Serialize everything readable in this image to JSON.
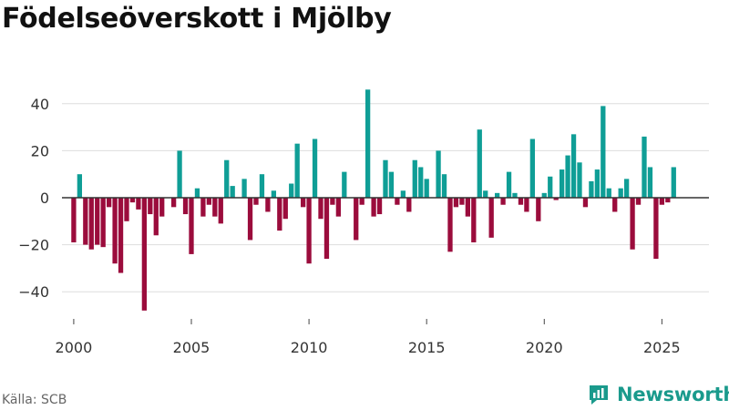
{
  "page": {
    "title": "Födelseöverskott i Mjölby",
    "source": "Källa: SCB",
    "brand": "Newsworthy"
  },
  "chart_data": {
    "type": "bar",
    "title": "Födelseöverskott i Mjölby",
    "xlabel": "",
    "ylabel": "",
    "frequency": "quarterly",
    "start": "2000-Q1",
    "ylim": [
      -50,
      50
    ],
    "yticks": [
      -40,
      -20,
      0,
      20,
      40
    ],
    "ytick_labels": [
      "−40",
      "−20",
      "0",
      "20",
      "40"
    ],
    "xticks": [
      2000,
      2005,
      2010,
      2015,
      2020,
      2025
    ],
    "xlim": [
      1999.5,
      2027.0
    ],
    "grid": true,
    "colors": {
      "positive": "#0f9e96",
      "negative": "#9b0c3c",
      "zero_line": "#333333",
      "grid": "#dddddd"
    },
    "values": [
      -19,
      10,
      -20,
      -22,
      -20,
      -21,
      -4,
      -28,
      -32,
      -10,
      -2,
      -5,
      -48,
      -7,
      -16,
      -8,
      0,
      -4,
      20,
      -7,
      -24,
      4,
      -8,
      -3,
      -8,
      -11,
      16,
      5,
      0,
      8,
      -18,
      -3,
      10,
      -6,
      3,
      -14,
      -9,
      6,
      23,
      -4,
      -28,
      25,
      -9,
      -26,
      -3,
      -8,
      11,
      0,
      -18,
      -3,
      46,
      -8,
      -7,
      16,
      11,
      -3,
      3,
      -6,
      16,
      13,
      8,
      0,
      20,
      10,
      -23,
      -4,
      -3,
      -8,
      -19,
      29,
      3,
      -17,
      2,
      -3,
      11,
      2,
      -3,
      -6,
      25,
      -10,
      2,
      9,
      -1,
      12,
      18,
      27,
      15,
      -4,
      7,
      12,
      39,
      4,
      -6,
      4,
      8,
      -22,
      -3,
      26,
      13,
      -26,
      -3,
      -2,
      13
    ]
  }
}
